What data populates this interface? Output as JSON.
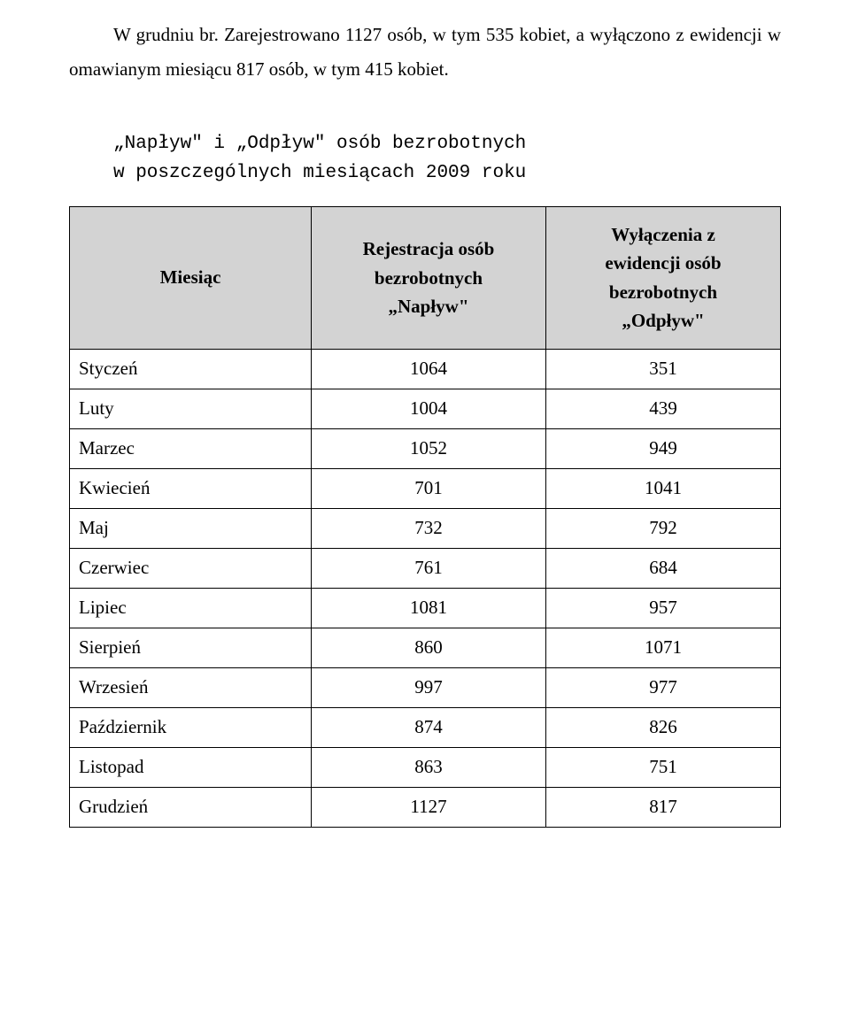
{
  "paragraph": "W grudniu br. Zarejestrowano 1127 osób, w tym 535 kobiet, a wyłączono z ewidencji w omawianym miesiącu 817 osób, w tym 415 kobiet.",
  "subtitle_line1": "„Napływ\" i  „Odpływ\" osób bezrobotnych",
  "subtitle_line2": "w poszczególnych miesiącach 2009 roku",
  "headers": {
    "month": "Miesiąc",
    "reg_l1": "Rejestracja osób",
    "reg_l2": "bezrobotnych",
    "reg_l3": "„Napływ\"",
    "excl_l1": "Wyłączenia z",
    "excl_l2": "ewidencji osób",
    "excl_l3": "bezrobotnych",
    "excl_l4": "„Odpływ\""
  },
  "rows": [
    {
      "label": "Styczeń",
      "reg": "1064",
      "excl": "351"
    },
    {
      "label": "Luty",
      "reg": "1004",
      "excl": "439"
    },
    {
      "label": "Marzec",
      "reg": "1052",
      "excl": "949"
    },
    {
      "label": "Kwiecień",
      "reg": "701",
      "excl": "1041"
    },
    {
      "label": "Maj",
      "reg": "732",
      "excl": "792"
    },
    {
      "label": "Czerwiec",
      "reg": "761",
      "excl": "684"
    },
    {
      "label": "Lipiec",
      "reg": "1081",
      "excl": "957"
    },
    {
      "label": "Sierpień",
      "reg": "860",
      "excl": "1071"
    },
    {
      "label": "Wrzesień",
      "reg": "997",
      "excl": "977"
    },
    {
      "label": "Październik",
      "reg": "874",
      "excl": "826"
    },
    {
      "label": "Listopad",
      "reg": "863",
      "excl": "751"
    },
    {
      "label": "Grudzień",
      "reg": "1127",
      "excl": "817"
    }
  ]
}
